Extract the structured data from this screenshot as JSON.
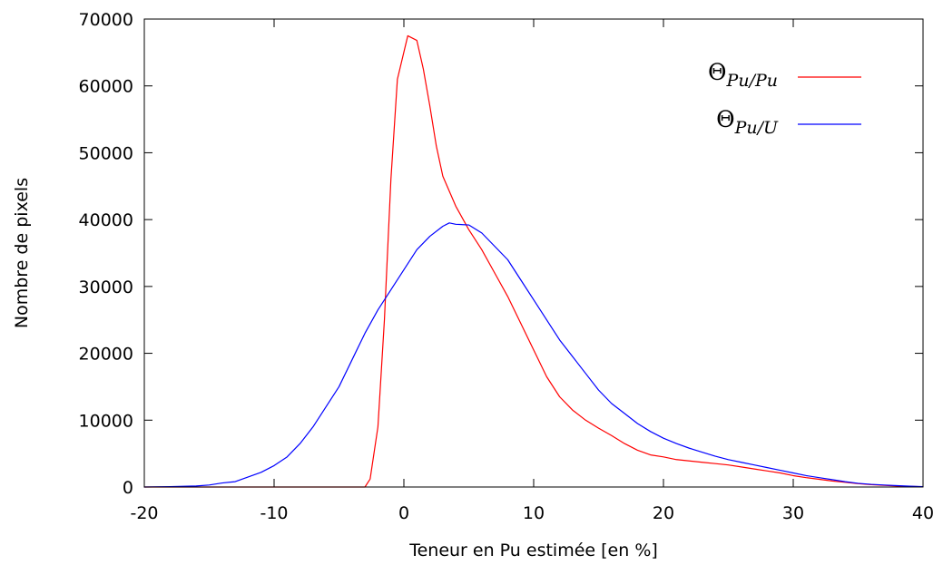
{
  "chart_data": {
    "type": "line",
    "title": "",
    "xlabel": "Teneur en Pu estimée [en %]",
    "ylabel": "Nombre de pixels",
    "xlim": [
      -20,
      40
    ],
    "ylim": [
      0,
      70000
    ],
    "xticks": [
      -20,
      -10,
      0,
      10,
      20,
      30,
      40
    ],
    "yticks": [
      0,
      10000,
      20000,
      30000,
      40000,
      50000,
      60000,
      70000
    ],
    "x_tick_labels": [
      "-20",
      "-10",
      "0",
      "10",
      "20",
      "30",
      "40"
    ],
    "y_tick_labels": [
      "0",
      "10000",
      "20000",
      "30000",
      "40000",
      "50000",
      "60000",
      "70000"
    ],
    "grid": false,
    "legend_position": "top-right",
    "series": [
      {
        "name": "Θ",
        "subscript": "Pu/Pu",
        "color": "#ff0000",
        "points": [
          [
            -20,
            0
          ],
          [
            -4,
            0
          ],
          [
            -3,
            0
          ],
          [
            -2.6,
            1200
          ],
          [
            -2,
            9000
          ],
          [
            -1.5,
            25000
          ],
          [
            -1,
            46000
          ],
          [
            -0.5,
            61000
          ],
          [
            0.3,
            67500
          ],
          [
            1,
            66800
          ],
          [
            1.5,
            62500
          ],
          [
            2,
            57000
          ],
          [
            2.5,
            51000
          ],
          [
            3,
            46500
          ],
          [
            4,
            42000
          ],
          [
            5,
            38500
          ],
          [
            6,
            35500
          ],
          [
            7,
            32000
          ],
          [
            8,
            28500
          ],
          [
            9,
            24500
          ],
          [
            10,
            20500
          ],
          [
            11,
            16500
          ],
          [
            12,
            13500
          ],
          [
            13,
            11500
          ],
          [
            14,
            10000
          ],
          [
            15,
            8800
          ],
          [
            16,
            7700
          ],
          [
            17,
            6500
          ],
          [
            18,
            5500
          ],
          [
            19,
            4800
          ],
          [
            20,
            4500
          ],
          [
            21,
            4100
          ],
          [
            22,
            3900
          ],
          [
            23,
            3700
          ],
          [
            24,
            3500
          ],
          [
            25,
            3300
          ],
          [
            26,
            3000
          ],
          [
            27,
            2700
          ],
          [
            28,
            2400
          ],
          [
            29,
            2100
          ],
          [
            30,
            1700
          ],
          [
            31,
            1400
          ],
          [
            32,
            1150
          ],
          [
            33,
            900
          ],
          [
            34,
            700
          ],
          [
            35,
            500
          ],
          [
            36,
            350
          ],
          [
            37,
            250
          ],
          [
            38,
            150
          ],
          [
            39,
            80
          ],
          [
            40,
            30
          ]
        ]
      },
      {
        "name": "Θ",
        "subscript": "Pu/U",
        "color": "#0000ff",
        "points": [
          [
            -20,
            0
          ],
          [
            -18,
            50
          ],
          [
            -16,
            150
          ],
          [
            -15,
            300
          ],
          [
            -14,
            600
          ],
          [
            -13,
            800
          ],
          [
            -12,
            1500
          ],
          [
            -11,
            2200
          ],
          [
            -10,
            3200
          ],
          [
            -9,
            4500
          ],
          [
            -8,
            6500
          ],
          [
            -7,
            9000
          ],
          [
            -6,
            12000
          ],
          [
            -5,
            15000
          ],
          [
            -4,
            19000
          ],
          [
            -3,
            23000
          ],
          [
            -2,
            26500
          ],
          [
            -1,
            29500
          ],
          [
            0,
            32500
          ],
          [
            1,
            35500
          ],
          [
            2,
            37500
          ],
          [
            3,
            39000
          ],
          [
            3.5,
            39500
          ],
          [
            4,
            39300
          ],
          [
            5,
            39200
          ],
          [
            6,
            38000
          ],
          [
            7,
            36000
          ],
          [
            8,
            34000
          ],
          [
            9,
            31000
          ],
          [
            10,
            28000
          ],
          [
            11,
            25000
          ],
          [
            12,
            22000
          ],
          [
            13,
            19500
          ],
          [
            14,
            17000
          ],
          [
            15,
            14500
          ],
          [
            16,
            12500
          ],
          [
            17,
            11000
          ],
          [
            18,
            9500
          ],
          [
            19,
            8300
          ],
          [
            20,
            7300
          ],
          [
            21,
            6500
          ],
          [
            22,
            5800
          ],
          [
            23,
            5200
          ],
          [
            24,
            4600
          ],
          [
            25,
            4100
          ],
          [
            26,
            3700
          ],
          [
            27,
            3300
          ],
          [
            28,
            2900
          ],
          [
            29,
            2500
          ],
          [
            30,
            2100
          ],
          [
            31,
            1700
          ],
          [
            32,
            1400
          ],
          [
            33,
            1100
          ],
          [
            34,
            800
          ],
          [
            35,
            550
          ],
          [
            36,
            400
          ],
          [
            37,
            300
          ],
          [
            38,
            200
          ],
          [
            39,
            120
          ],
          [
            40,
            50
          ]
        ]
      }
    ]
  }
}
